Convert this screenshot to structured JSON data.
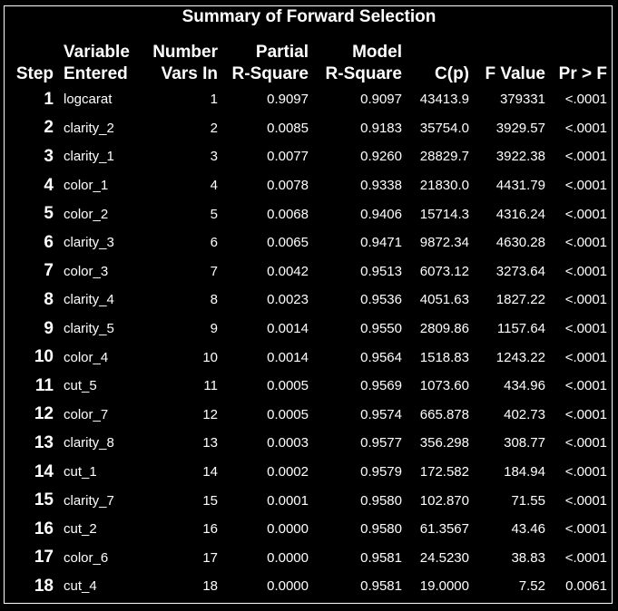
{
  "title": "Summary of Forward Selection",
  "headers": {
    "step": [
      "Step"
    ],
    "variable": [
      "Variable",
      "Entered"
    ],
    "number": [
      "Number",
      "Vars In"
    ],
    "partial": [
      "Partial",
      "R-Square"
    ],
    "model": [
      "Model",
      "R-Square"
    ],
    "cp": [
      "C(p)"
    ],
    "f": [
      "F Value"
    ],
    "pr": [
      "Pr > F"
    ]
  },
  "rows": [
    {
      "step": "1",
      "variable": "logcarat",
      "number": "1",
      "partial": "0.9097",
      "model": "0.9097",
      "cp": "43413.9",
      "f": "379331",
      "pr": "<.0001"
    },
    {
      "step": "2",
      "variable": "clarity_2",
      "number": "2",
      "partial": "0.0085",
      "model": "0.9183",
      "cp": "35754.0",
      "f": "3929.57",
      "pr": "<.0001"
    },
    {
      "step": "3",
      "variable": "clarity_1",
      "number": "3",
      "partial": "0.0077",
      "model": "0.9260",
      "cp": "28829.7",
      "f": "3922.38",
      "pr": "<.0001"
    },
    {
      "step": "4",
      "variable": "color_1",
      "number": "4",
      "partial": "0.0078",
      "model": "0.9338",
      "cp": "21830.0",
      "f": "4431.79",
      "pr": "<.0001"
    },
    {
      "step": "5",
      "variable": "color_2",
      "number": "5",
      "partial": "0.0068",
      "model": "0.9406",
      "cp": "15714.3",
      "f": "4316.24",
      "pr": "<.0001"
    },
    {
      "step": "6",
      "variable": "clarity_3",
      "number": "6",
      "partial": "0.0065",
      "model": "0.9471",
      "cp": "9872.34",
      "f": "4630.28",
      "pr": "<.0001"
    },
    {
      "step": "7",
      "variable": "color_3",
      "number": "7",
      "partial": "0.0042",
      "model": "0.9513",
      "cp": "6073.12",
      "f": "3273.64",
      "pr": "<.0001"
    },
    {
      "step": "8",
      "variable": "clarity_4",
      "number": "8",
      "partial": "0.0023",
      "model": "0.9536",
      "cp": "4051.63",
      "f": "1827.22",
      "pr": "<.0001"
    },
    {
      "step": "9",
      "variable": "clarity_5",
      "number": "9",
      "partial": "0.0014",
      "model": "0.9550",
      "cp": "2809.86",
      "f": "1157.64",
      "pr": "<.0001"
    },
    {
      "step": "10",
      "variable": "color_4",
      "number": "10",
      "partial": "0.0014",
      "model": "0.9564",
      "cp": "1518.83",
      "f": "1243.22",
      "pr": "<.0001"
    },
    {
      "step": "11",
      "variable": "cut_5",
      "number": "11",
      "partial": "0.0005",
      "model": "0.9569",
      "cp": "1073.60",
      "f": "434.96",
      "pr": "<.0001"
    },
    {
      "step": "12",
      "variable": "color_7",
      "number": "12",
      "partial": "0.0005",
      "model": "0.9574",
      "cp": "665.878",
      "f": "402.73",
      "pr": "<.0001"
    },
    {
      "step": "13",
      "variable": "clarity_8",
      "number": "13",
      "partial": "0.0003",
      "model": "0.9577",
      "cp": "356.298",
      "f": "308.77",
      "pr": "<.0001"
    },
    {
      "step": "14",
      "variable": "cut_1",
      "number": "14",
      "partial": "0.0002",
      "model": "0.9579",
      "cp": "172.582",
      "f": "184.94",
      "pr": "<.0001"
    },
    {
      "step": "15",
      "variable": "clarity_7",
      "number": "15",
      "partial": "0.0001",
      "model": "0.9580",
      "cp": "102.870",
      "f": "71.55",
      "pr": "<.0001"
    },
    {
      "step": "16",
      "variable": "cut_2",
      "number": "16",
      "partial": "0.0000",
      "model": "0.9580",
      "cp": "61.3567",
      "f": "43.46",
      "pr": "<.0001"
    },
    {
      "step": "17",
      "variable": "color_6",
      "number": "17",
      "partial": "0.0000",
      "model": "0.9581",
      "cp": "24.5230",
      "f": "38.83",
      "pr": "<.0001"
    },
    {
      "step": "18",
      "variable": "cut_4",
      "number": "18",
      "partial": "0.0000",
      "model": "0.9581",
      "cp": "19.0000",
      "f": "7.52",
      "pr": "0.0061"
    }
  ]
}
